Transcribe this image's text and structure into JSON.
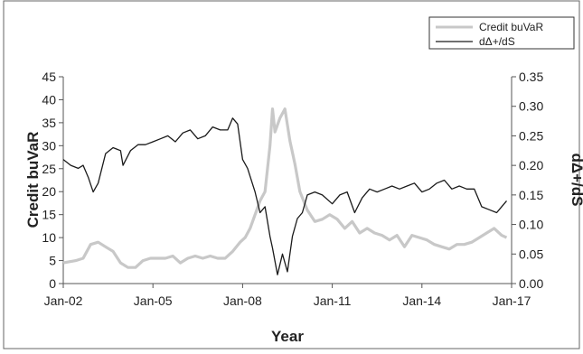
{
  "chart_data": {
    "type": "line",
    "title": "",
    "xlabel": "Year",
    "ylabel": "Credit buVaR",
    "y2label": "dΔ+/dS",
    "x_ticks": [
      "Jan-02",
      "Jan-05",
      "Jan-08",
      "Jan-11",
      "Jan-14",
      "Jan-17"
    ],
    "x_range": [
      "2002-01",
      "2017-01"
    ],
    "ylim": [
      0,
      45
    ],
    "y_ticks": [
      "0",
      "5",
      "10",
      "15",
      "20",
      "25",
      "30",
      "35",
      "40",
      "45"
    ],
    "y2lim": [
      0.0,
      0.35
    ],
    "y2_ticks": [
      "0.00",
      "0.05",
      "0.10",
      "0.15",
      "0.20",
      "0.25",
      "0.30",
      "0.35"
    ],
    "grid": false,
    "legend_position": "top-right",
    "series": [
      {
        "name": "Credit buVaR",
        "axis": "left",
        "color": "#c8c8c8",
        "points": [
          [
            "2002-01",
            4.5
          ],
          [
            "2002-06",
            5.0
          ],
          [
            "2002-09",
            5.5
          ],
          [
            "2002-12",
            8.5
          ],
          [
            "2003-03",
            9.0
          ],
          [
            "2003-06",
            8.0
          ],
          [
            "2003-09",
            7.0
          ],
          [
            "2003-12",
            4.5
          ],
          [
            "2004-03",
            3.5
          ],
          [
            "2004-06",
            3.5
          ],
          [
            "2004-09",
            5.0
          ],
          [
            "2004-12",
            5.5
          ],
          [
            "2005-03",
            5.5
          ],
          [
            "2005-06",
            5.5
          ],
          [
            "2005-09",
            6.0
          ],
          [
            "2005-12",
            4.5
          ],
          [
            "2006-03",
            5.5
          ],
          [
            "2006-06",
            6.0
          ],
          [
            "2006-09",
            5.5
          ],
          [
            "2006-12",
            6.0
          ],
          [
            "2007-03",
            5.5
          ],
          [
            "2007-06",
            5.5
          ],
          [
            "2007-09",
            7.0
          ],
          [
            "2007-12",
            9.0
          ],
          [
            "2008-02",
            10.0
          ],
          [
            "2008-04",
            12.0
          ],
          [
            "2008-06",
            15.0
          ],
          [
            "2008-08",
            18.0
          ],
          [
            "2008-10",
            20.0
          ],
          [
            "2008-12",
            30.0
          ],
          [
            "2009-01",
            38.0
          ],
          [
            "2009-02",
            33.0
          ],
          [
            "2009-04",
            36.0
          ],
          [
            "2009-06",
            38.0
          ],
          [
            "2009-08",
            31.0
          ],
          [
            "2009-10",
            26.0
          ],
          [
            "2009-12",
            20.0
          ],
          [
            "2010-03",
            16.0
          ],
          [
            "2010-06",
            13.5
          ],
          [
            "2010-09",
            14.0
          ],
          [
            "2010-12",
            15.0
          ],
          [
            "2011-03",
            14.0
          ],
          [
            "2011-06",
            12.0
          ],
          [
            "2011-09",
            13.5
          ],
          [
            "2011-12",
            11.0
          ],
          [
            "2012-03",
            12.0
          ],
          [
            "2012-06",
            11.0
          ],
          [
            "2012-09",
            10.5
          ],
          [
            "2012-12",
            9.5
          ],
          [
            "2013-03",
            10.5
          ],
          [
            "2013-06",
            8.0
          ],
          [
            "2013-09",
            10.5
          ],
          [
            "2013-12",
            10.0
          ],
          [
            "2014-03",
            9.5
          ],
          [
            "2014-06",
            8.5
          ],
          [
            "2014-09",
            8.0
          ],
          [
            "2014-12",
            7.5
          ],
          [
            "2015-03",
            8.5
          ],
          [
            "2015-06",
            8.5
          ],
          [
            "2015-09",
            9.0
          ],
          [
            "2015-12",
            10.0
          ],
          [
            "2016-03",
            11.0
          ],
          [
            "2016-06",
            12.0
          ],
          [
            "2016-09",
            10.5
          ],
          [
            "2016-11",
            10.0
          ]
        ]
      },
      {
        "name": "dΔ+/dS",
        "axis": "right",
        "color": "#1a1a1a",
        "points": [
          [
            "2002-01",
            0.21
          ],
          [
            "2002-04",
            0.2
          ],
          [
            "2002-07",
            0.195
          ],
          [
            "2002-09",
            0.2
          ],
          [
            "2002-11",
            0.18
          ],
          [
            "2003-01",
            0.155
          ],
          [
            "2003-03",
            0.17
          ],
          [
            "2003-06",
            0.22
          ],
          [
            "2003-09",
            0.23
          ],
          [
            "2003-12",
            0.225
          ],
          [
            "2004-01",
            0.2
          ],
          [
            "2004-04",
            0.225
          ],
          [
            "2004-07",
            0.235
          ],
          [
            "2004-10",
            0.235
          ],
          [
            "2005-01",
            0.24
          ],
          [
            "2005-04",
            0.245
          ],
          [
            "2005-07",
            0.25
          ],
          [
            "2005-10",
            0.24
          ],
          [
            "2006-01",
            0.255
          ],
          [
            "2006-04",
            0.26
          ],
          [
            "2006-07",
            0.245
          ],
          [
            "2006-10",
            0.25
          ],
          [
            "2007-01",
            0.265
          ],
          [
            "2007-04",
            0.26
          ],
          [
            "2007-07",
            0.26
          ],
          [
            "2007-09",
            0.28
          ],
          [
            "2007-11",
            0.27
          ],
          [
            "2008-01",
            0.21
          ],
          [
            "2008-03",
            0.195
          ],
          [
            "2008-06",
            0.155
          ],
          [
            "2008-08",
            0.12
          ],
          [
            "2008-10",
            0.13
          ],
          [
            "2008-12",
            0.08
          ],
          [
            "2009-01",
            0.06
          ],
          [
            "2009-03",
            0.015
          ],
          [
            "2009-05",
            0.05
          ],
          [
            "2009-07",
            0.02
          ],
          [
            "2009-09",
            0.08
          ],
          [
            "2009-11",
            0.11
          ],
          [
            "2010-01",
            0.12
          ],
          [
            "2010-03",
            0.15
          ],
          [
            "2010-06",
            0.155
          ],
          [
            "2010-09",
            0.15
          ],
          [
            "2011-01",
            0.135
          ],
          [
            "2011-04",
            0.15
          ],
          [
            "2011-07",
            0.155
          ],
          [
            "2011-10",
            0.12
          ],
          [
            "2012-01",
            0.145
          ],
          [
            "2012-04",
            0.16
          ],
          [
            "2012-07",
            0.155
          ],
          [
            "2012-10",
            0.16
          ],
          [
            "2013-01",
            0.165
          ],
          [
            "2013-04",
            0.16
          ],
          [
            "2013-07",
            0.165
          ],
          [
            "2013-10",
            0.17
          ],
          [
            "2014-01",
            0.155
          ],
          [
            "2014-04",
            0.16
          ],
          [
            "2014-07",
            0.17
          ],
          [
            "2014-10",
            0.175
          ],
          [
            "2015-01",
            0.16
          ],
          [
            "2015-04",
            0.165
          ],
          [
            "2015-07",
            0.16
          ],
          [
            "2015-10",
            0.16
          ],
          [
            "2016-01",
            0.13
          ],
          [
            "2016-04",
            0.125
          ],
          [
            "2016-07",
            0.12
          ],
          [
            "2016-09",
            0.13
          ],
          [
            "2016-11",
            0.14
          ]
        ]
      }
    ]
  }
}
